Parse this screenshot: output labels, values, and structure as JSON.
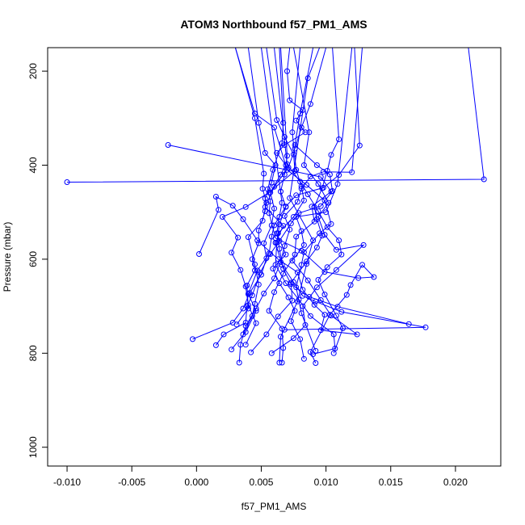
{
  "chart_data": {
    "type": "line",
    "title": "ATOM3 Northbound f57_PM1_AMS",
    "xlabel": "f57_PM1_AMS",
    "ylabel": "Pressure (mbar)",
    "xlim": [
      -0.0115,
      0.0235
    ],
    "ylim": [
      1040,
      150
    ],
    "y_reversed": true,
    "x_ticks": [
      -0.01,
      -0.005,
      0.0,
      0.005,
      0.01,
      0.015,
      0.02
    ],
    "x_tick_labels": [
      "-0.010",
      "-0.005",
      "0.000",
      "0.005",
      "0.010",
      "0.015",
      "0.020"
    ],
    "y_ticks": [
      200,
      400,
      600,
      800,
      1000
    ],
    "y_tick_labels": [
      "200",
      "400",
      "600",
      "800",
      "1000"
    ],
    "grid": false,
    "legend": "none",
    "series_color": "#0000ff",
    "series": [
      {
        "points": [
          [
            0.0064,
            820
          ],
          [
            0.0065,
            765
          ],
          [
            0.0078,
            690
          ],
          [
            0.0085,
            610
          ],
          [
            0.009,
            560
          ],
          [
            0.0072,
            470
          ],
          [
            0.0086,
            215
          ],
          [
            0.0095,
            150
          ]
        ]
      },
      {
        "points": [
          [
            -0.01,
            436
          ],
          [
            0.0222,
            430
          ],
          [
            0.021,
            150
          ]
        ]
      },
      {
        "points": [
          [
            0.0092,
            821
          ],
          [
            0.0088,
            797
          ],
          [
            0.0103,
            718
          ],
          [
            0.0116,
            676
          ],
          [
            0.0119,
            655
          ],
          [
            0.0128,
            612
          ],
          [
            0.0137,
            638
          ],
          [
            0.0125,
            640
          ],
          [
            0.0099,
            627
          ],
          [
            0.0081,
            582
          ],
          [
            0.0061,
            555
          ],
          [
            0.0056,
            502
          ],
          [
            0.0057,
            477
          ],
          [
            0.0055,
            451
          ],
          [
            0.0059,
            410
          ],
          [
            0.0066,
            353
          ],
          [
            0.0067,
            310
          ],
          [
            0.0064,
            150
          ]
        ]
      },
      {
        "points": [
          [
            -0.0003,
            770
          ],
          [
            0.0028,
            735
          ],
          [
            0.0036,
            705
          ],
          [
            0.0041,
            672
          ],
          [
            0.005,
            633
          ],
          [
            0.0054,
            598
          ],
          [
            0.0052,
            566
          ],
          [
            0.0058,
            528
          ],
          [
            0.006,
            492
          ],
          [
            0.0057,
            458
          ],
          [
            0.0065,
            420
          ],
          [
            0.0069,
            400
          ],
          [
            0.0062,
            374
          ],
          [
            0.0068,
            357
          ],
          [
            0.0084,
            330
          ],
          [
            0.0077,
            305
          ],
          [
            0.0082,
            283
          ],
          [
            0.0072,
            262
          ],
          [
            0.007,
            200
          ],
          [
            0.0072,
            150
          ]
        ]
      },
      {
        "points": [
          [
            0.0092,
            795
          ],
          [
            0.0081,
            715
          ],
          [
            0.0077,
            660
          ],
          [
            0.0081,
            612
          ],
          [
            0.0083,
            585
          ],
          [
            0.0095,
            545
          ],
          [
            0.0104,
            525
          ],
          [
            0.0099,
            475
          ],
          [
            0.0085,
            442
          ],
          [
            0.007,
            410
          ],
          [
            0.006,
            320
          ],
          [
            0.0045,
            290
          ],
          [
            0.003,
            150
          ]
        ]
      },
      {
        "points": [
          [
            -0.0022,
            357
          ],
          [
            0.0096,
            425
          ],
          [
            0.0104,
            456
          ],
          [
            0.0089,
            488
          ],
          [
            0.0091,
            520
          ],
          [
            0.0077,
            552
          ],
          [
            0.0076,
            590
          ],
          [
            0.0067,
            631
          ],
          [
            0.006,
            670
          ],
          [
            0.0056,
            710
          ],
          [
            0.0066,
            748
          ],
          [
            0.0067,
            789
          ],
          [
            0.0066,
            820
          ]
        ]
      },
      {
        "points": [
          [
            0.0033,
            820
          ],
          [
            0.0034,
            782
          ],
          [
            0.0038,
            742
          ],
          [
            0.0046,
            705
          ],
          [
            0.0052,
            673
          ],
          [
            0.006,
            641
          ],
          [
            0.0065,
            606
          ],
          [
            0.0068,
            572
          ],
          [
            0.0072,
            537
          ],
          [
            0.0068,
            508
          ],
          [
            0.0078,
            478
          ],
          [
            0.0081,
            450
          ],
          [
            0.0088,
            424
          ],
          [
            0.0098,
            414
          ],
          [
            0.012,
            415
          ],
          [
            0.0128,
            150
          ]
        ]
      },
      {
        "points": [
          [
            0.0002,
            589
          ],
          [
            0.0017,
            495
          ],
          [
            0.0015,
            467
          ],
          [
            0.0028,
            486
          ],
          [
            0.0036,
            515
          ],
          [
            0.0047,
            560
          ],
          [
            0.0063,
            600
          ],
          [
            0.0078,
            628
          ],
          [
            0.0082,
            665
          ],
          [
            0.0091,
            697
          ],
          [
            0.0099,
            718
          ],
          [
            0.0096,
            751
          ],
          [
            0.0124,
            760
          ],
          [
            0.0104,
            720
          ],
          [
            0.0096,
            687
          ],
          [
            0.0086,
            645
          ],
          [
            0.0074,
            603
          ],
          [
            0.0083,
            570
          ],
          [
            0.0081,
            540
          ],
          [
            0.0077,
            510
          ],
          [
            0.01,
            500
          ],
          [
            0.0109,
            440
          ],
          [
            0.012,
            150
          ]
        ]
      },
      {
        "points": [
          [
            0.0015,
            783
          ],
          [
            0.0021,
            760
          ],
          [
            0.0038,
            735
          ],
          [
            0.0039,
            700
          ],
          [
            0.0043,
            677
          ],
          [
            0.0049,
            629
          ],
          [
            0.0057,
            589
          ],
          [
            0.0064,
            561
          ],
          [
            0.0073,
            524
          ],
          [
            0.0079,
            502
          ],
          [
            0.0096,
            487
          ],
          [
            0.0105,
            455
          ],
          [
            0.0103,
            420
          ],
          [
            0.0093,
            400
          ],
          [
            0.0076,
            357
          ],
          [
            0.008,
            290
          ],
          [
            0.009,
            150
          ]
        ]
      },
      {
        "points": [
          [
            0.0042,
            798
          ],
          [
            0.0054,
            760
          ],
          [
            0.0063,
            722
          ],
          [
            0.0074,
            688
          ],
          [
            0.0073,
            650
          ],
          [
            0.0085,
            605
          ],
          [
            0.0093,
            575
          ],
          [
            0.0097,
            550
          ],
          [
            0.0093,
            515
          ],
          [
            0.0091,
            489
          ],
          [
            0.0097,
            449
          ],
          [
            0.0101,
            412
          ],
          [
            0.0104,
            378
          ],
          [
            0.011,
            345
          ],
          [
            0.0105,
            150
          ]
        ]
      },
      {
        "points": [
          [
            0.0027,
            792
          ],
          [
            0.0038,
            755
          ],
          [
            0.0046,
            710
          ],
          [
            0.004,
            674
          ],
          [
            0.0047,
            624
          ],
          [
            0.0056,
            588
          ],
          [
            0.0058,
            552
          ],
          [
            0.006,
            528
          ],
          [
            0.0069,
            488
          ],
          [
            0.0077,
            464
          ],
          [
            0.0098,
            448
          ],
          [
            0.011,
            421
          ],
          [
            0.0126,
            358
          ],
          [
            0.0122,
            150
          ]
        ]
      },
      {
        "points": [
          [
            0.0068,
            750
          ],
          [
            0.0177,
            745
          ],
          [
            0.0112,
            712
          ],
          [
            0.0092,
            690
          ],
          [
            0.0082,
            678
          ],
          [
            0.0075,
            649
          ],
          [
            0.0066,
            612
          ],
          [
            0.0061,
            565
          ],
          [
            0.0067,
            529
          ],
          [
            0.0053,
            489
          ],
          [
            0.006,
            446
          ],
          [
            0.0071,
            405
          ],
          [
            0.0076,
            365
          ],
          [
            0.0081,
            320
          ],
          [
            0.0088,
            270
          ],
          [
            0.01,
            150
          ]
        ]
      },
      {
        "points": [
          [
            0.0038,
            782
          ],
          [
            0.0046,
            736
          ],
          [
            0.004,
            698
          ],
          [
            0.0038,
            658
          ],
          [
            0.0034,
            623
          ],
          [
            0.0027,
            586
          ],
          [
            0.0032,
            554
          ],
          [
            0.002,
            510
          ],
          [
            0.0038,
            489
          ],
          [
            0.0056,
            458
          ],
          [
            0.0076,
            412
          ],
          [
            0.0075,
            377
          ],
          [
            0.0068,
            340
          ],
          [
            0.0062,
            304
          ],
          [
            0.0054,
            150
          ]
        ]
      },
      {
        "points": [
          [
            0.0031,
            739
          ],
          [
            0.004,
            705
          ],
          [
            0.0039,
            656
          ],
          [
            0.0045,
            624
          ],
          [
            0.0043,
            600
          ],
          [
            0.0048,
            566
          ],
          [
            0.0048,
            539
          ],
          [
            0.0053,
            498
          ],
          [
            0.0053,
            471
          ],
          [
            0.0058,
            437
          ],
          [
            0.0061,
            400
          ],
          [
            0.0053,
            374
          ],
          [
            0.0048,
            310
          ],
          [
            0.004,
            150
          ]
        ]
      },
      {
        "points": [
          [
            0.0036,
            760
          ],
          [
            0.0043,
            721
          ],
          [
            0.0045,
            695
          ],
          [
            0.0048,
            654
          ],
          [
            0.0045,
            611
          ],
          [
            0.004,
            553
          ],
          [
            0.0051,
            518
          ],
          [
            0.0054,
            480
          ],
          [
            0.0051,
            450
          ],
          [
            0.0052,
            418
          ],
          [
            0.0045,
            300
          ],
          [
            0.003,
            150
          ]
        ]
      },
      {
        "points": [
          [
            0.0058,
            800
          ],
          [
            0.0075,
            768
          ],
          [
            0.0084,
            740
          ],
          [
            0.0082,
            700
          ],
          [
            0.0093,
            660
          ],
          [
            0.0108,
            623
          ],
          [
            0.0129,
            570
          ],
          [
            0.0108,
            580
          ],
          [
            0.0099,
            548
          ],
          [
            0.0094,
            510
          ],
          [
            0.0102,
            480
          ],
          [
            0.0094,
            440
          ],
          [
            0.0083,
            400
          ],
          [
            0.0087,
            330
          ],
          [
            0.0075,
            150
          ]
        ]
      },
      {
        "points": [
          [
            0.0164,
            738
          ],
          [
            0.0109,
            701
          ],
          [
            0.0087,
            680
          ],
          [
            0.0073,
            653
          ],
          [
            0.0067,
            620
          ],
          [
            0.0064,
            578
          ],
          [
            0.0063,
            545
          ],
          [
            0.0075,
            510
          ],
          [
            0.0083,
            475
          ],
          [
            0.0081,
            445
          ],
          [
            0.0077,
            410
          ],
          [
            0.0074,
            330
          ],
          [
            0.008,
            150
          ]
        ]
      },
      {
        "points": [
          [
            0.009,
            802
          ],
          [
            0.0107,
            790
          ],
          [
            0.0106,
            760
          ],
          [
            0.0088,
            721
          ],
          [
            0.0079,
            686
          ],
          [
            0.0069,
            651
          ],
          [
            0.0061,
            612
          ],
          [
            0.0062,
            565
          ],
          [
            0.0064,
            526
          ],
          [
            0.0069,
            489
          ],
          [
            0.0065,
            456
          ],
          [
            0.0068,
            420
          ],
          [
            0.007,
            380
          ],
          [
            0.0065,
            150
          ]
        ]
      },
      {
        "points": [
          [
            0.0106,
            800
          ],
          [
            0.0113,
            747
          ],
          [
            0.0108,
            720
          ],
          [
            0.0099,
            675
          ],
          [
            0.0094,
            644
          ],
          [
            0.0101,
            617
          ],
          [
            0.0112,
            590
          ],
          [
            0.011,
            560
          ],
          [
            0.0101,
            532
          ],
          [
            0.0094,
            498
          ],
          [
            0.0086,
            462
          ],
          [
            0.008,
            435
          ],
          [
            0.007,
            398
          ],
          [
            0.006,
            150
          ]
        ]
      },
      {
        "points": [
          [
            0.0083,
            812
          ],
          [
            0.008,
            770
          ],
          [
            0.0073,
            732
          ],
          [
            0.0076,
            710
          ],
          [
            0.0071,
            681
          ],
          [
            0.0064,
            651
          ],
          [
            0.0059,
            620
          ],
          [
            0.0069,
            590
          ],
          [
            0.0062,
            545
          ],
          [
            0.0064,
            510
          ],
          [
            0.0066,
            480
          ],
          [
            0.005,
            150
          ]
        ]
      }
    ]
  }
}
